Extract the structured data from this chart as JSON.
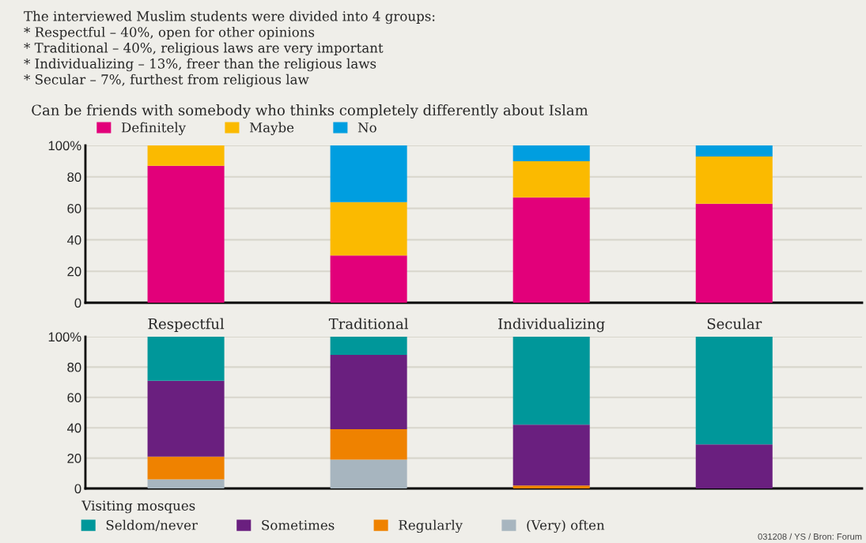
{
  "chart_data": [
    {
      "type": "bar",
      "stacked": true,
      "title": "Can be friends with somebody who thinks completely differently about Islam",
      "annotations": [
        "The interviewed Muslim students were divided into 4 groups:",
        "* Respectful – 40%, open for other opinions",
        "* Traditional – 40%, religious laws are very important",
        "* Individualizing – 13%, freer than the religious laws",
        "* Secular – 7%, furthest from religious law"
      ],
      "categories": [
        "Respectful",
        "Traditional",
        "Individualizing",
        "Secular"
      ],
      "series": [
        {
          "name": "Definitely",
          "color": "#e2007a",
          "values": [
            87,
            30,
            67,
            63
          ]
        },
        {
          "name": "Maybe",
          "color": "#fbba00",
          "values": [
            13,
            34,
            23,
            30
          ]
        },
        {
          "name": "No",
          "color": "#009ee0",
          "values": [
            0,
            36,
            10,
            7
          ]
        }
      ],
      "ylim": [
        0,
        100
      ],
      "yticks": [
        {
          "value": 0,
          "label": "0"
        },
        {
          "value": 20,
          "label": "20"
        },
        {
          "value": 40,
          "label": "40"
        },
        {
          "value": 60,
          "label": "60"
        },
        {
          "value": 80,
          "label": "80"
        },
        {
          "value": 100,
          "label": "100%"
        }
      ],
      "grid": "y",
      "legend": "top left"
    },
    {
      "type": "bar",
      "stacked": true,
      "legend_title": "Visiting mosques",
      "annotations": [
        "031208 / YS / Bron: Forum"
      ],
      "categories": [
        null,
        null,
        null,
        null
      ],
      "series": [
        {
          "name": "(Very) often",
          "color": "#a7b5bf",
          "values": [
            6,
            19,
            0,
            0
          ]
        },
        {
          "name": "Regularly",
          "color": "#ef8200",
          "values": [
            15,
            20,
            2,
            0
          ]
        },
        {
          "name": "Sometimes",
          "color": "#6a1f7f",
          "values": [
            50,
            49,
            40,
            29
          ]
        },
        {
          "name": "Seldom/never",
          "color": "#00979a",
          "values": [
            29,
            12,
            58,
            71
          ]
        }
      ],
      "ylim": [
        0,
        100
      ],
      "yticks": [
        {
          "value": 0,
          "label": "0"
        },
        {
          "value": 20,
          "label": "20"
        },
        {
          "value": 40,
          "label": "40"
        },
        {
          "value": 60,
          "label": "60"
        },
        {
          "value": 80,
          "label": "80"
        },
        {
          "value": 100,
          "label": "100%"
        }
      ],
      "grid": "y",
      "legend": "bottom left",
      "tick_labels": "y"
    }
  ]
}
